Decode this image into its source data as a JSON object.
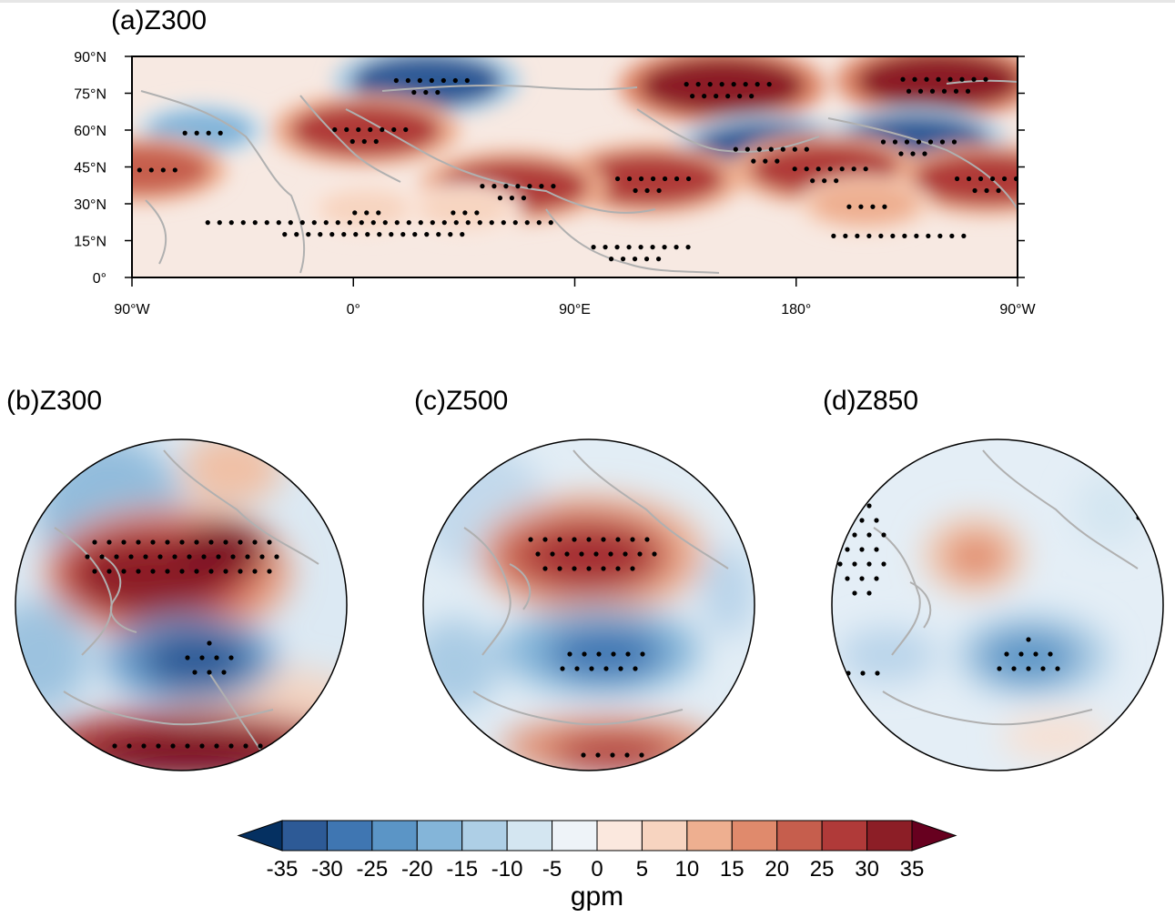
{
  "chart_data": [
    {
      "panel": "a",
      "title": "(a)Z300",
      "type": "heatmap",
      "projection": "cylindrical equidistant",
      "variable": "Z300 anomaly",
      "y_ticks": [
        "90°N",
        "75°N",
        "60°N",
        "45°N",
        "30°N",
        "15°N",
        "0°"
      ],
      "y_values": [
        90,
        75,
        60,
        45,
        30,
        15,
        0
      ],
      "x_ticks": [
        "90°W",
        "0°",
        "90°E",
        "180°",
        "90°W"
      ],
      "x_values": [
        -90,
        0,
        90,
        180,
        270
      ],
      "lon_range": [
        -90,
        270
      ],
      "lat_range": [
        0,
        90
      ],
      "features": [
        {
          "lon": 30,
          "lat": 80,
          "value": -30,
          "significant": true
        },
        {
          "lon": 5,
          "lat": 60,
          "value": 30,
          "significant": true
        },
        {
          "lon": -62,
          "lat": 60,
          "value": -15,
          "significant": true
        },
        {
          "lon": 150,
          "lat": 78,
          "value": 35,
          "significant": true
        },
        {
          "lon": 238,
          "lat": 80,
          "value": 35,
          "significant": true
        },
        {
          "lon": 168,
          "lat": 52,
          "value": -30,
          "significant": true
        },
        {
          "lon": 228,
          "lat": 55,
          "value": -30,
          "significant": true
        },
        {
          "lon": 192,
          "lat": 44,
          "value": 30,
          "significant": true
        },
        {
          "lon": 258,
          "lat": 40,
          "value": 30,
          "significant": true
        },
        {
          "lon": 120,
          "lat": 40,
          "value": 30,
          "significant": true
        },
        {
          "lon": 65,
          "lat": 37,
          "value": 30,
          "significant": true
        },
        {
          "lon": -86,
          "lat": 44,
          "value": 25,
          "significant": true
        },
        {
          "lon": 5,
          "lat": 28,
          "value": 10,
          "significant": true
        },
        {
          "lon": 208,
          "lat": 30,
          "value": 15,
          "significant": true
        },
        {
          "lon": 45,
          "lat": 28,
          "value": 10,
          "significant": true
        }
      ]
    },
    {
      "panel": "b",
      "title": "(b)Z300",
      "type": "heatmap",
      "projection": "north polar stereographic",
      "features": [
        {
          "pos": "left-upper",
          "value": 35,
          "significant": true
        },
        {
          "pos": "center",
          "value": -35,
          "significant": true
        },
        {
          "pos": "bottom",
          "value": 35,
          "significant": true
        },
        {
          "pos": "top-left",
          "value": -10,
          "significant": false
        }
      ]
    },
    {
      "panel": "c",
      "title": "(c)Z500",
      "type": "heatmap",
      "projection": "north polar stereographic",
      "features": [
        {
          "pos": "upper",
          "value": 30,
          "significant": true
        },
        {
          "pos": "center",
          "value": -30,
          "significant": true
        },
        {
          "pos": "bottom",
          "value": 25,
          "significant": true
        }
      ]
    },
    {
      "panel": "d",
      "title": "(d)Z850",
      "type": "heatmap",
      "projection": "north polar stereographic",
      "features": [
        {
          "pos": "upper-center",
          "value": 15,
          "significant": false
        },
        {
          "pos": "center-right",
          "value": -20,
          "significant": true
        },
        {
          "pos": "left",
          "value": -10,
          "significant": true
        }
      ]
    }
  ],
  "colorbar": {
    "levels": [
      -35,
      -30,
      -25,
      -20,
      -15,
      -10,
      -5,
      0,
      5,
      10,
      15,
      20,
      25,
      30,
      35
    ],
    "labels": [
      "-35",
      "-30",
      "-25",
      "-20",
      "-15",
      "-10",
      "-5",
      "0",
      "5",
      "10",
      "15",
      "20",
      "25",
      "30",
      "35"
    ],
    "colors": [
      "#053061",
      "#2d5a96",
      "#3f76b2",
      "#5b95c6",
      "#84b5d9",
      "#aecfe6",
      "#d4e6f1",
      "#eef3f8",
      "#fbe8de",
      "#f7d4c0",
      "#eeaf90",
      "#e08a6c",
      "#c65e4d",
      "#b03a39",
      "#8c1e26",
      "#67001f"
    ],
    "unit": "gpm"
  }
}
